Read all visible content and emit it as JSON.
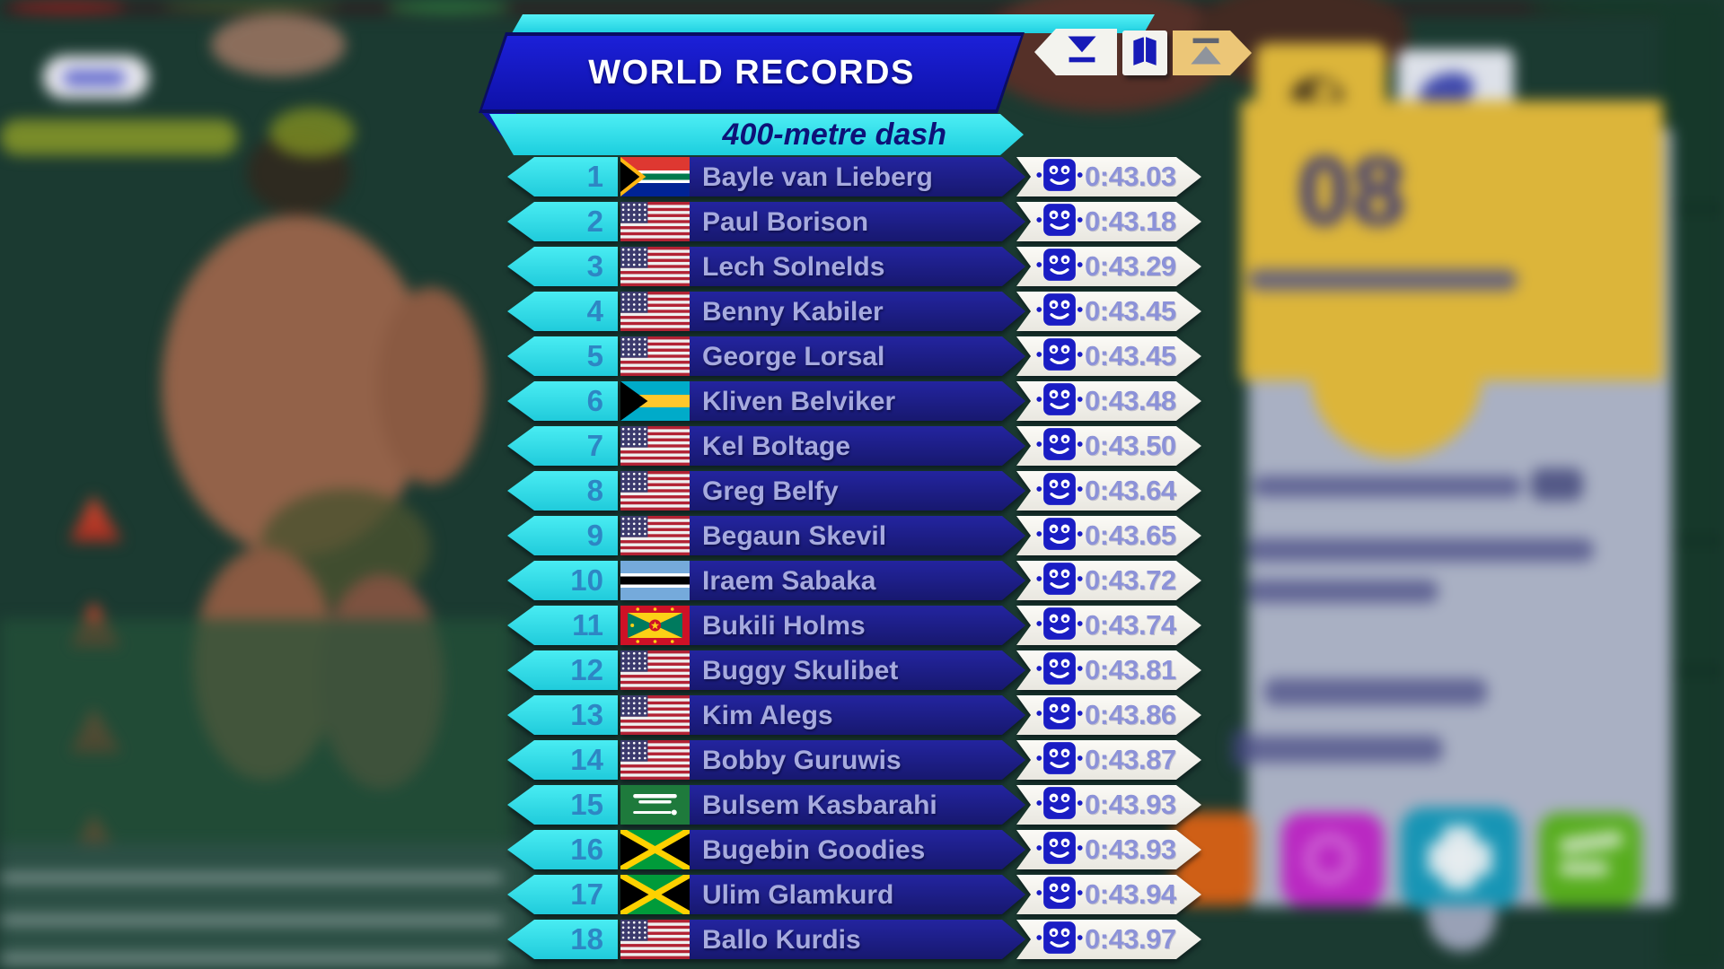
{
  "header": {
    "title": "WORLD RECORDS",
    "subtitle": "400-metre dash"
  },
  "toolbar": {
    "buttons": [
      {
        "id": "scroll-down",
        "icon": "triangle-down-with-bar",
        "glyph": "▼"
      },
      {
        "id": "records-book",
        "icon": "open-book",
        "glyph": "📖"
      },
      {
        "id": "scroll-up",
        "icon": "triangle-up-with-bar",
        "glyph": "▲"
      }
    ]
  },
  "records": [
    {
      "rank": "1",
      "country": "South Africa",
      "flag": "za",
      "name": "Bayle van Lieberg",
      "time": "0:43.03"
    },
    {
      "rank": "2",
      "country": "United States",
      "flag": "us",
      "name": "Paul Borison",
      "time": "0:43.18"
    },
    {
      "rank": "3",
      "country": "United States",
      "flag": "us",
      "name": "Lech Solnelds",
      "time": "0:43.29"
    },
    {
      "rank": "4",
      "country": "United States",
      "flag": "us",
      "name": "Benny Kabiler",
      "time": "0:43.45"
    },
    {
      "rank": "5",
      "country": "United States",
      "flag": "us",
      "name": "George Lorsal",
      "time": "0:43.45"
    },
    {
      "rank": "6",
      "country": "Bahamas",
      "flag": "bs",
      "name": "Kliven Belviker",
      "time": "0:43.48"
    },
    {
      "rank": "7",
      "country": "United States",
      "flag": "us",
      "name": "Kel Boltage",
      "time": "0:43.50"
    },
    {
      "rank": "8",
      "country": "United States",
      "flag": "us",
      "name": "Greg Belfy",
      "time": "0:43.64"
    },
    {
      "rank": "9",
      "country": "United States",
      "flag": "us",
      "name": "Begaun Skevil",
      "time": "0:43.65"
    },
    {
      "rank": "10",
      "country": "Botswana",
      "flag": "bw",
      "name": "Iraem Sabaka",
      "time": "0:43.72"
    },
    {
      "rank": "11",
      "country": "Grenada",
      "flag": "gd",
      "name": "Bukili Holms",
      "time": "0:43.74"
    },
    {
      "rank": "12",
      "country": "United States",
      "flag": "us",
      "name": "Buggy Skulibet",
      "time": "0:43.81"
    },
    {
      "rank": "13",
      "country": "United States",
      "flag": "us",
      "name": "Kim Alegs",
      "time": "0:43.86"
    },
    {
      "rank": "14",
      "country": "United States",
      "flag": "us",
      "name": "Bobby Guruwis",
      "time": "0:43.87"
    },
    {
      "rank": "15",
      "country": "Saudi Arabia",
      "flag": "sa",
      "name": "Bulsem Kasbarahi",
      "time": "0:43.93"
    },
    {
      "rank": "16",
      "country": "Jamaica",
      "flag": "jm",
      "name": "Bugebin Goodies",
      "time": "0:43.93"
    },
    {
      "rank": "17",
      "country": "Jamaica",
      "flag": "jm",
      "name": "Ulim Glamkurd",
      "time": "0:43.94"
    },
    {
      "rank": "18",
      "country": "United States",
      "flag": "us",
      "name": "Ballo Kurdis",
      "time": "0:43.97"
    }
  ],
  "row_icon": "robot-face",
  "side_panel": {
    "event_number": "08"
  },
  "colors": {
    "accent_cyan": "#35e2ee",
    "banner_blue": "#1418cf",
    "row_blue": "#1d1f9c",
    "name_text": "#a6aade",
    "time_text": "#8c92d8",
    "rank_text": "#2e86c4",
    "panel_yellow": "#dcb53a",
    "panel_lavender": "#a9b0c3"
  }
}
